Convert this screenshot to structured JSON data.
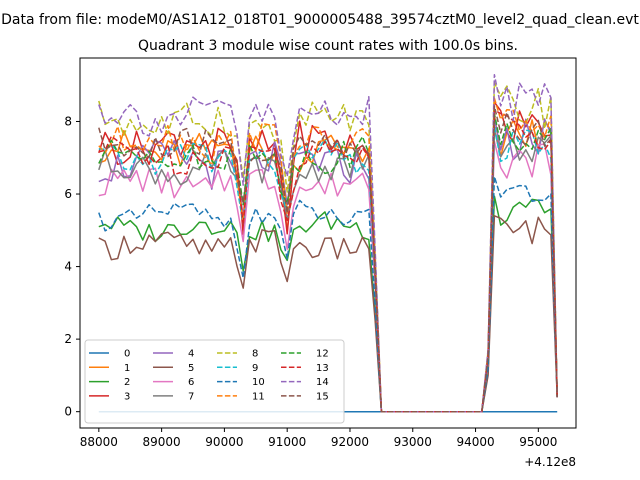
{
  "chart_data": {
    "type": "line",
    "suptitle": "Data from file: modeM0/AS1A12_018T01_9000005488_39574cztM0_level2_quad_clean.evt",
    "title": "Quadrant 3 module wise count rates with 100.0s bins.",
    "xlabel": "",
    "ylabel": "",
    "x_offset_label": "+4.12e8",
    "xlim": [
      87700,
      95600
    ],
    "ylim": [
      -0.45,
      9.75
    ],
    "x_ticks": [
      88000,
      89000,
      90000,
      91000,
      92000,
      93000,
      94000,
      95000
    ],
    "x_tick_labels": [
      "88000",
      "89000",
      "90000",
      "91000",
      "92000",
      "93000",
      "94000",
      "95000"
    ],
    "y_ticks": [
      0,
      2,
      4,
      6,
      8
    ],
    "y_tick_labels": [
      "0",
      "2",
      "4",
      "6",
      "8"
    ],
    "grid": false,
    "legend_position": "lower-left",
    "legend_ncol": 4,
    "x_segment1_start": 88000,
    "x_step": 100,
    "segment1_count": 45,
    "gap_zero_x": [
      92500,
      92600,
      92700,
      92800,
      92900,
      93000,
      93100,
      93200,
      93300,
      93400,
      93500,
      93600,
      93700,
      93800,
      93900,
      94000,
      94100
    ],
    "x_segment2_start": 94200,
    "segment2_count": 12,
    "series": [
      {
        "name": "0",
        "color": "#1f77b4",
        "dash": "solid",
        "zero": true
      },
      {
        "name": "1",
        "color": "#ff7f0e",
        "dash": "solid",
        "base": 7.2,
        "amp": 0.5,
        "dip": 1.6,
        "low": 0.4,
        "seg2": 7.6
      },
      {
        "name": "2",
        "color": "#2ca02c",
        "dash": "solid",
        "base": 5.1,
        "amp": 0.3,
        "dip": 1.0,
        "low": 0.4,
        "seg2": 5.5
      },
      {
        "name": "3",
        "color": "#d62728",
        "dash": "solid",
        "base": 7.4,
        "amp": 0.5,
        "dip": 2.3,
        "low": 0.4,
        "seg2": 7.9
      },
      {
        "name": "4",
        "color": "#9467bd",
        "dash": "solid",
        "base": 6.9,
        "amp": 0.5,
        "dip": 1.5,
        "low": 0.4,
        "seg2": 7.5
      },
      {
        "name": "5",
        "color": "#8c564b",
        "dash": "solid",
        "base": 4.6,
        "amp": 0.35,
        "dip": 1.0,
        "low": 0.4,
        "seg2": 5.0
      },
      {
        "name": "6",
        "color": "#e377c2",
        "dash": "solid",
        "base": 6.3,
        "amp": 0.4,
        "dip": 1.4,
        "low": 0.4,
        "seg2": 6.9
      },
      {
        "name": "7",
        "color": "#7f7f7f",
        "dash": "solid",
        "base": 6.7,
        "amp": 0.4,
        "dip": 1.4,
        "low": 0.4,
        "seg2": 7.2
      },
      {
        "name": "8",
        "color": "#bcbd22",
        "dash": "dashed",
        "base": 8.0,
        "amp": 0.5,
        "dip": 1.8,
        "low": 0.4,
        "seg2": 8.4
      },
      {
        "name": "9",
        "color": "#17becf",
        "dash": "dashed",
        "base": 7.0,
        "amp": 0.4,
        "dip": 1.6,
        "low": 0.4,
        "seg2": 7.3
      },
      {
        "name": "10",
        "color": "#1f77b4",
        "dash": "dashed",
        "base": 5.4,
        "amp": 0.3,
        "dip": 1.3,
        "low": 0.4,
        "seg2": 6.0
      },
      {
        "name": "11",
        "color": "#ff7f0e",
        "dash": "dashed",
        "base": 7.5,
        "amp": 0.45,
        "dip": 1.8,
        "low": 0.4,
        "seg2": 8.0
      },
      {
        "name": "12",
        "color": "#2ca02c",
        "dash": "dashed",
        "base": 7.1,
        "amp": 0.4,
        "dip": 1.6,
        "low": 0.4,
        "seg2": 7.6
      },
      {
        "name": "13",
        "color": "#d62728",
        "dash": "dashed",
        "base": 7.1,
        "amp": 0.45,
        "dip": 1.8,
        "low": 0.4,
        "seg2": 7.7
      },
      {
        "name": "14",
        "color": "#9467bd",
        "dash": "dashed",
        "base": 8.2,
        "amp": 0.5,
        "dip": 1.9,
        "low": 0.4,
        "seg2": 8.6
      },
      {
        "name": "15",
        "color": "#8c564b",
        "dash": "dashed",
        "base": 7.3,
        "amp": 0.45,
        "dip": 1.7,
        "low": 0.4,
        "seg2": 7.8
      }
    ]
  }
}
